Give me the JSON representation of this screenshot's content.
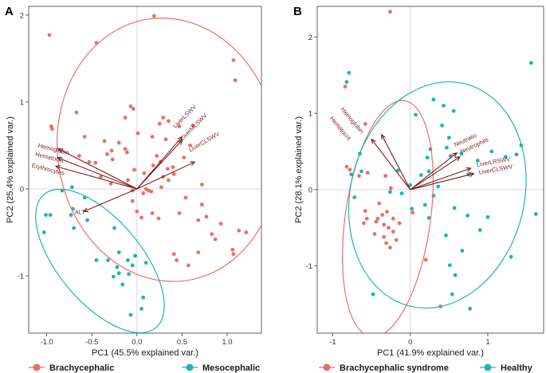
{
  "colors": {
    "group_a": "#E8706A",
    "group_b": "#1FB3B6",
    "arrow": "#7F1B1B",
    "grid": "#d9d9d9",
    "frame": "#3a3a3a"
  },
  "chart_data": [
    {
      "type": "scatter",
      "panel_label": "A",
      "title": "",
      "xlabel": "PC1 (45.5% explained var.)",
      "ylabel": "PC2 (25.4% explained var.)",
      "xlim": [
        -1.2,
        1.38
      ],
      "ylim": [
        -1.66,
        2.1
      ],
      "xticks": [
        -1.0,
        -0.5,
        0.0,
        0.5,
        1.0
      ],
      "xtick_labels": [
        "-1.0",
        "-0.5",
        "0.0",
        "0.5",
        "1.0"
      ],
      "yticks": [
        -1,
        0,
        1,
        2
      ],
      "ytick_labels": [
        "-1",
        "0",
        "1",
        "2"
      ],
      "series": [
        {
          "name": "Brachycephalic",
          "color_key": "group_a",
          "points": [
            [
              0.19,
              1.99
            ],
            [
              -0.97,
              1.77
            ],
            [
              -0.45,
              1.68
            ],
            [
              1.07,
              1.48
            ],
            [
              1.09,
              1.25
            ],
            [
              -0.07,
              0.95
            ],
            [
              -0.04,
              0.92
            ],
            [
              -0.67,
              0.88
            ],
            [
              -0.13,
              0.82
            ],
            [
              0.29,
              0.82
            ],
            [
              0.35,
              0.78
            ],
            [
              0.62,
              0.73
            ],
            [
              0.47,
              0.72
            ],
            [
              0.25,
              0.75
            ],
            [
              -0.95,
              0.72
            ],
            [
              -0.94,
              0.69
            ],
            [
              0.01,
              0.64
            ],
            [
              0.17,
              0.6
            ],
            [
              -0.58,
              0.6
            ],
            [
              0.32,
              0.57
            ],
            [
              -0.36,
              0.55
            ],
            [
              -0.2,
              0.53
            ],
            [
              0.59,
              0.5
            ],
            [
              -0.28,
              0.44
            ],
            [
              -0.13,
              0.46
            ],
            [
              -0.33,
              0.4
            ],
            [
              -0.11,
              0.42
            ],
            [
              -0.64,
              0.38
            ],
            [
              0.22,
              0.38
            ],
            [
              0.52,
              0.36
            ],
            [
              -0.27,
              0.34
            ],
            [
              -0.53,
              0.31
            ],
            [
              -0.46,
              0.3
            ],
            [
              0.26,
              0.31
            ],
            [
              0.18,
              0.27
            ],
            [
              0.4,
              0.25
            ],
            [
              -0.03,
              0.22
            ],
            [
              0.34,
              0.23
            ],
            [
              0.08,
              0.18
            ],
            [
              0.41,
              0.17
            ],
            [
              0.29,
              0.14
            ],
            [
              -0.4,
              0.14
            ],
            [
              -0.1,
              0.1
            ],
            [
              0.35,
              0.1
            ],
            [
              -0.29,
              0.06
            ],
            [
              0.72,
              0.05
            ],
            [
              0.1,
              0.0
            ],
            [
              0.27,
              0.02
            ],
            [
              -0.05,
              -0.02
            ],
            [
              0.13,
              -0.02
            ],
            [
              0.07,
              -0.05
            ],
            [
              0.16,
              -0.03
            ],
            [
              0.54,
              -0.1
            ],
            [
              -0.05,
              -0.14
            ],
            [
              0.72,
              -0.18
            ],
            [
              0.0,
              -0.26
            ],
            [
              0.17,
              -0.28
            ],
            [
              0.47,
              -0.28
            ],
            [
              0.05,
              -0.33
            ],
            [
              0.24,
              -0.34
            ],
            [
              0.77,
              -0.32
            ],
            [
              0.68,
              -0.36
            ],
            [
              0.93,
              -0.4
            ],
            [
              1.21,
              -0.5
            ],
            [
              1.13,
              -0.48
            ],
            [
              0.83,
              -0.52
            ],
            [
              0.87,
              -0.58
            ],
            [
              1.06,
              -0.7
            ],
            [
              0.68,
              -0.73
            ],
            [
              0.41,
              -0.75
            ],
            [
              0.44,
              -0.82
            ],
            [
              0.57,
              -0.88
            ],
            [
              1.07,
              -0.75
            ]
          ]
        },
        {
          "name": "Mesocephalic",
          "color_key": "group_b",
          "points": [
            [
              -0.72,
              0.02
            ],
            [
              -0.83,
              -0.02
            ],
            [
              -0.58,
              -0.1
            ],
            [
              -0.71,
              -0.23
            ],
            [
              -0.96,
              -0.3
            ],
            [
              -1.01,
              -0.3
            ],
            [
              -0.73,
              -0.3
            ],
            [
              -0.55,
              -0.36
            ],
            [
              -0.7,
              -0.45
            ],
            [
              -0.25,
              -0.45
            ],
            [
              -1.03,
              -0.5
            ],
            [
              -0.2,
              -0.73
            ],
            [
              -0.45,
              -0.82
            ],
            [
              -0.32,
              -0.82
            ],
            [
              -0.1,
              -0.82
            ],
            [
              -0.02,
              -0.77
            ],
            [
              -0.05,
              -0.88
            ],
            [
              0.1,
              -0.85
            ],
            [
              -0.22,
              -0.9
            ],
            [
              -0.26,
              -1.01
            ],
            [
              -0.2,
              -0.97
            ],
            [
              -0.09,
              -0.98
            ],
            [
              -0.16,
              -1.1
            ],
            [
              0.07,
              -1.25
            ],
            [
              0.05,
              -1.38
            ],
            [
              -0.07,
              -1.45
            ]
          ]
        }
      ],
      "ellipses": [
        {
          "series": "Brachycephalic",
          "cx": 0.34,
          "cy": 0.45,
          "rx": 1.22,
          "ry": 1.52,
          "rotation_deg": 8
        },
        {
          "series": "Mesocephalic",
          "cx": -0.41,
          "cy": -0.83,
          "rx": 0.46,
          "ry": 1.0,
          "rotation_deg": 40
        }
      ],
      "vectors": [
        {
          "label": "LiverLSWV",
          "x": 0.5,
          "y": 0.6,
          "anchor": "end",
          "rot": -45,
          "lx": 0.66,
          "ly": 0.94
        },
        {
          "label": "LiverMLSWV",
          "x": 0.5,
          "y": 0.56,
          "anchor": "end",
          "rot": -45,
          "lx": 0.78,
          "ly": 0.84
        },
        {
          "label": "LiverCLSWV",
          "x": 0.64,
          "y": 0.31,
          "anchor": "end",
          "rot": -30,
          "lx": 0.92,
          "ly": 0.62
        },
        {
          "label": "Hemoglobin",
          "x": -0.87,
          "y": 0.46,
          "anchor": "start",
          "rot": 14,
          "lx": -1.1,
          "ly": 0.48
        },
        {
          "label": "Hematocrit",
          "x": -0.88,
          "y": 0.36,
          "anchor": "start",
          "rot": 14,
          "lx": -1.13,
          "ly": 0.38
        },
        {
          "label": "Erythrocytes",
          "x": -0.9,
          "y": 0.26,
          "anchor": "start",
          "rot": 14,
          "lx": -1.17,
          "ly": 0.25
        },
        {
          "label": "ALT",
          "x": -0.59,
          "y": -0.26,
          "anchor": "start",
          "rot": 0,
          "lx": -0.69,
          "ly": -0.29
        }
      ]
    },
    {
      "type": "scatter",
      "panel_label": "B",
      "title": "",
      "xlabel": "PC1 (41.9% explained var.)",
      "ylabel": "PC2 (28.1% explained var.)",
      "xlim": [
        -1.2,
        1.72
      ],
      "ylim": [
        -1.88,
        2.4
      ],
      "xticks": [
        -1,
        0,
        1
      ],
      "xtick_labels": [
        "-1",
        "0",
        "1"
      ],
      "yticks": [
        -1,
        0,
        1,
        2
      ],
      "ytick_labels": [
        "-1",
        "0",
        "1",
        "2"
      ],
      "series": [
        {
          "name": "Brachycephalic syndrome",
          "color_key": "group_a",
          "points": [
            [
              -0.26,
              2.33
            ],
            [
              -0.84,
              1.35
            ],
            [
              -0.58,
              0.86
            ],
            [
              -0.82,
              0.3
            ],
            [
              -0.78,
              0.26
            ],
            [
              -0.55,
              0.22
            ],
            [
              -0.66,
              0.18
            ],
            [
              -0.32,
              0.18
            ],
            [
              -0.25,
              0.02
            ],
            [
              -0.4,
              -0.18
            ],
            [
              -0.36,
              -0.33
            ],
            [
              -0.3,
              -0.29
            ],
            [
              -0.42,
              -0.38
            ],
            [
              -0.44,
              -0.42
            ],
            [
              -0.34,
              -0.46
            ],
            [
              -0.28,
              -0.5
            ],
            [
              -0.22,
              -0.55
            ],
            [
              -0.34,
              -0.62
            ],
            [
              -0.18,
              -0.66
            ],
            [
              -0.56,
              -0.38
            ],
            [
              -0.6,
              -0.44
            ],
            [
              -0.58,
              -0.28
            ],
            [
              -0.31,
              -0.7
            ],
            [
              -0.14,
              -0.44
            ],
            [
              0.2,
              -0.92
            ],
            [
              0.03,
              -0.3
            ],
            [
              -0.26,
              -0.76
            ],
            [
              0.39,
              -1.53
            ],
            [
              -0.46,
              -0.58
            ],
            [
              -0.22,
              -0.38
            ]
          ]
        },
        {
          "name": "Healthy",
          "color_key": "group_b",
          "points": [
            [
              1.56,
              1.66
            ],
            [
              -0.79,
              1.53
            ],
            [
              -0.82,
              1.41
            ],
            [
              0.3,
              1.18
            ],
            [
              0.43,
              1.1
            ],
            [
              0.56,
              1.03
            ],
            [
              0.07,
              0.98
            ],
            [
              0.41,
              0.84
            ],
            [
              0.5,
              0.68
            ],
            [
              0.47,
              0.55
            ],
            [
              0.26,
              0.53
            ],
            [
              0.52,
              0.44
            ],
            [
              -0.65,
              0.47
            ],
            [
              0.22,
              0.42
            ],
            [
              0.66,
              0.47
            ],
            [
              1.05,
              0.5
            ],
            [
              1.23,
              0.43
            ],
            [
              0.87,
              0.38
            ],
            [
              1.37,
              0.46
            ],
            [
              1.43,
              0.58
            ],
            [
              0.75,
              0.2
            ],
            [
              0.24,
              0.24
            ],
            [
              0.14,
              0.19
            ],
            [
              -0.16,
              0.25
            ],
            [
              -0.63,
              0.24
            ],
            [
              -0.76,
              0.2
            ],
            [
              0.0,
              0.06
            ],
            [
              0.36,
              0.04
            ],
            [
              -0.26,
              -0.03
            ],
            [
              -0.11,
              -0.05
            ],
            [
              0.19,
              -0.2
            ],
            [
              0.57,
              -0.24
            ],
            [
              0.02,
              -0.25
            ],
            [
              1.62,
              -0.32
            ],
            [
              0.24,
              -0.37
            ],
            [
              0.74,
              -0.34
            ],
            [
              1.0,
              -0.36
            ],
            [
              0.9,
              -0.53
            ],
            [
              0.46,
              -0.6
            ],
            [
              0.67,
              -0.8
            ],
            [
              1.3,
              -0.88
            ],
            [
              0.51,
              -0.99
            ],
            [
              0.58,
              -1.12
            ],
            [
              0.54,
              -1.37
            ],
            [
              0.77,
              -1.56
            ],
            [
              -0.48,
              -1.37
            ],
            [
              -0.72,
              -0.1
            ],
            [
              0.3,
              -0.08
            ]
          ]
        }
      ],
      "ellipses": [
        {
          "series": "Brachycephalic syndrome",
          "cx": -0.29,
          "cy": -0.38,
          "rx": 0.55,
          "ry": 1.56,
          "rotation_deg": -8
        },
        {
          "series": "Healthy",
          "cx": 0.35,
          "cy": -0.07,
          "rx": 1.12,
          "ry": 1.5,
          "rotation_deg": -14
        }
      ],
      "vectors": [
        {
          "label": "Hemoglobin",
          "x": -0.37,
          "y": 0.72,
          "anchor": "start",
          "rot": 50,
          "lx": -0.9,
          "ly": 1.05
        },
        {
          "label": "Hematocrit",
          "x": -0.5,
          "y": 0.66,
          "anchor": "start",
          "rot": 50,
          "lx": -1.04,
          "ly": 0.93
        },
        {
          "label": "Neutratio",
          "x": 0.6,
          "y": 0.48,
          "anchor": "start",
          "rot": -25,
          "lx": 0.58,
          "ly": 0.56
        },
        {
          "label": "Neutrophils",
          "x": 0.64,
          "y": 0.43,
          "anchor": "start",
          "rot": -25,
          "lx": 0.66,
          "ly": 0.47
        },
        {
          "label": "LiverLRSWV",
          "x": 0.78,
          "y": 0.28,
          "anchor": "start",
          "rot": -10,
          "lx": 0.86,
          "ly": 0.3
        },
        {
          "label": "LiverCLSWV",
          "x": 0.82,
          "y": 0.21,
          "anchor": "start",
          "rot": -10,
          "lx": 0.89,
          "ly": 0.2
        }
      ]
    }
  ]
}
